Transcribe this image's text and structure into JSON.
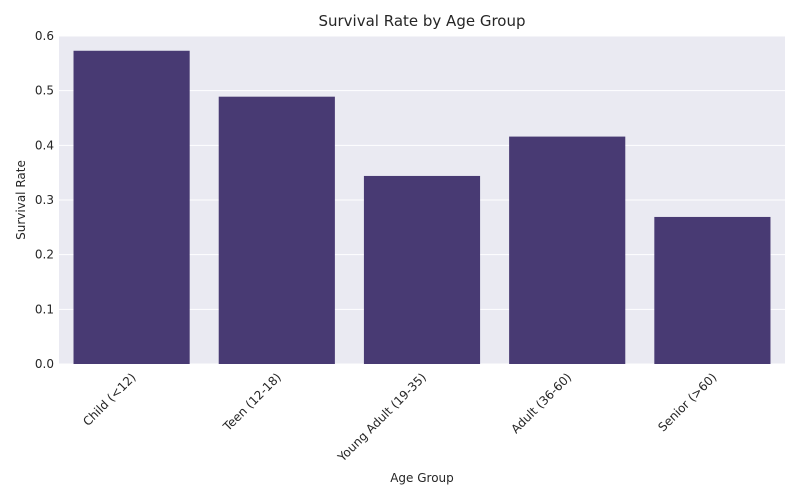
{
  "chart_data": {
    "type": "bar",
    "title": "Survival Rate by Age Group",
    "xlabel": "Age Group",
    "ylabel": "Survival Rate",
    "categories": [
      "Child (<12)",
      "Teen (12-18)",
      "Young Adult (19-35)",
      "Adult (36-60)",
      "Senior (>60)"
    ],
    "values": [
      0.573,
      0.489,
      0.344,
      0.416,
      0.269
    ],
    "ylim": [
      0,
      0.6
    ],
    "yticks": [
      "0.0",
      "0.1",
      "0.2",
      "0.3",
      "0.4",
      "0.5",
      "0.6"
    ],
    "grid": true,
    "legend": "none",
    "colors": {
      "bar": "#483a73",
      "plot_bg": "#eaeaf2",
      "grid": "#ffffff",
      "text": "#262626"
    }
  }
}
